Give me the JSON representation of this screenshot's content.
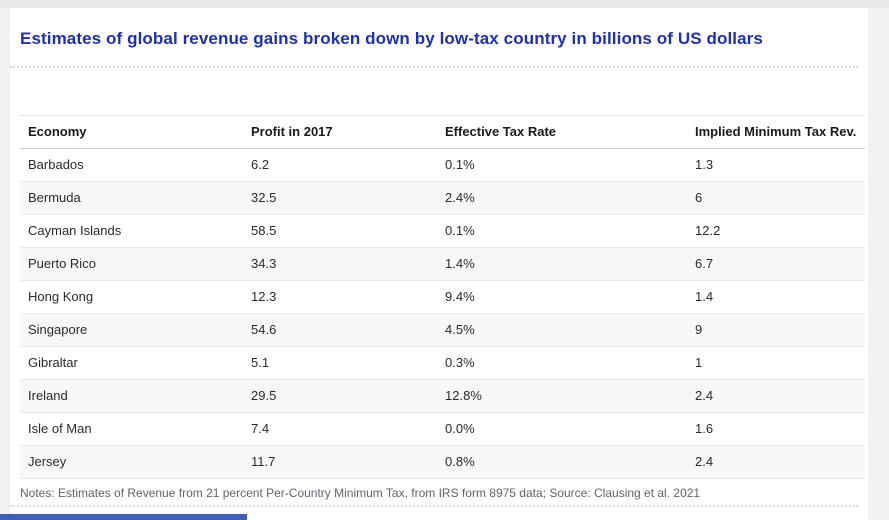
{
  "page": {
    "title": "Estimates of global revenue gains broken down by low-tax country in billions of US dollars",
    "notes": "Notes: Estimates of Revenue from 21 percent Per-Country Minimum Tax, from IRS form 8975 data; Source: Clausing et al. 2021"
  },
  "colors": {
    "title_blue": "#1d30b0",
    "page_background": "#f1f1f1",
    "card_background": "#ffffff",
    "row_stripe": "#f7f7f7",
    "row_border": "#e8e8e8",
    "header_border": "#c8c8c8",
    "notes_gray": "#5f6368",
    "accent_bar_blue": "#3f5eb5"
  },
  "chart_data": {
    "type": "table",
    "title": "Estimates of global revenue gains broken down by low-tax country in billions of US dollars",
    "columns": [
      "Economy",
      "Profit in 2017",
      "Effective Tax Rate",
      "Implied Minimum Tax Rev."
    ],
    "rows": [
      [
        "Barbados",
        "6.2",
        "0.1%",
        "1.3"
      ],
      [
        "Bermuda",
        "32.5",
        "2.4%",
        "6"
      ],
      [
        "Cayman Islands",
        "58.5",
        "0.1%",
        "12.2"
      ],
      [
        "Puerto Rico",
        "34.3",
        "1.4%",
        "6.7"
      ],
      [
        "Hong Kong",
        "12.3",
        "9.4%",
        "1.4"
      ],
      [
        "Singapore",
        "54.6",
        "4.5%",
        "9"
      ],
      [
        "Gibraltar",
        "5.1",
        "0.3%",
        "1"
      ],
      [
        "Ireland",
        "29.5",
        "12.8%",
        "2.4"
      ],
      [
        "Isle of Man",
        "7.4",
        "0.0%",
        "1.6"
      ],
      [
        "Jersey",
        "11.7",
        "0.8%",
        "2.4"
      ]
    ],
    "notes": "Notes: Estimates of Revenue from 21 percent Per-Country Minimum Tax, from IRS form 8975 data; Source: Clausing et al. 2021",
    "layout_hints": {
      "striped_rows": "even rows shaded",
      "grid": "horizontal row separators only",
      "units": "billions of US dollars"
    }
  }
}
